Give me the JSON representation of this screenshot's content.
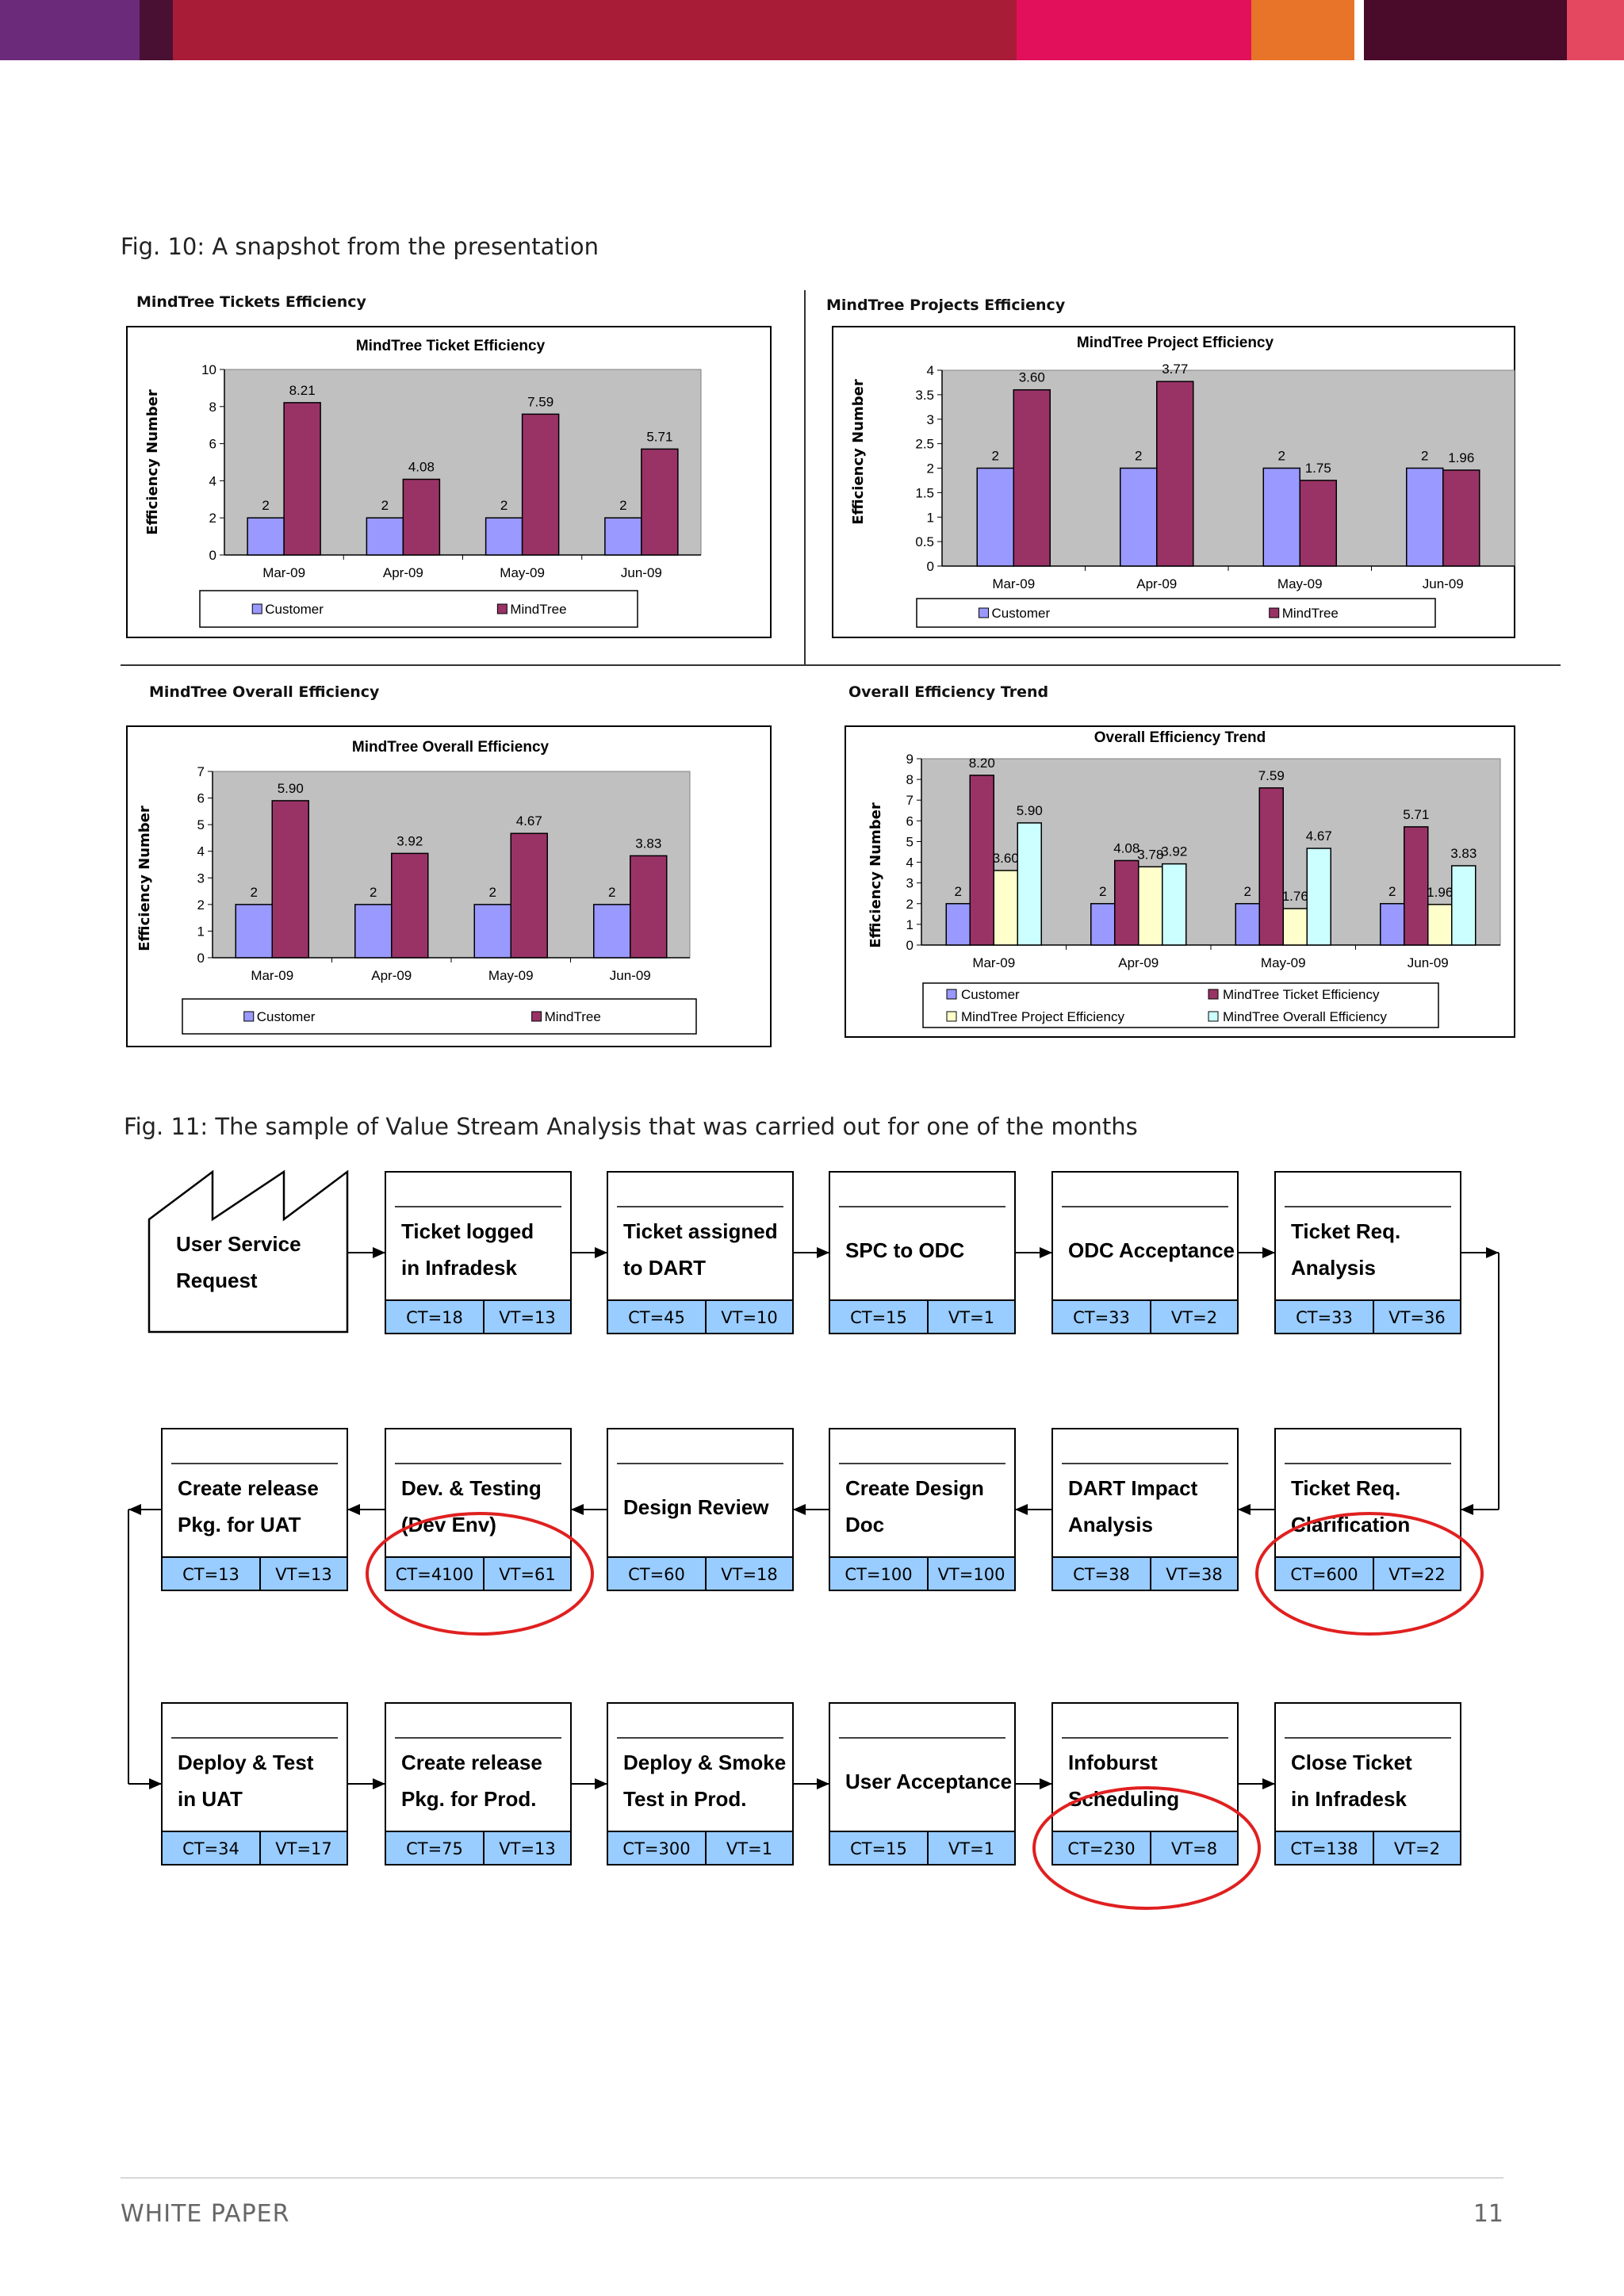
{
  "header": {
    "colors": [
      "#6b2a7a",
      "#4a1033",
      "#a81c38",
      "#e2105a",
      "#e8742a",
      "#4a0a2a",
      "#e34860"
    ]
  },
  "fig10": {
    "caption": "Fig. 10: A snapshot from the presentation"
  },
  "fig11": {
    "caption": "Fig. 11: The sample of Value Stream Analysis that was carried out for one of the months"
  },
  "panels": {
    "tickets": "MindTree Tickets Efficiency",
    "projects": "MindTree Projects Efficiency",
    "overall": "MindTree Overall Efficiency",
    "trend": "Overall Efficiency Trend"
  },
  "chart_data": [
    {
      "type": "bar",
      "title": "MindTree Ticket Efficiency",
      "ylabel": "Efficiency Number",
      "xlabel": "",
      "categories": [
        "Mar-09",
        "Apr-09",
        "May-09",
        "Jun-09"
      ],
      "ylim": [
        0,
        10
      ],
      "yticks": [
        "0",
        "2",
        "4",
        "6",
        "8",
        "10"
      ],
      "series": [
        {
          "name": "Customer",
          "values": [
            2,
            2,
            2,
            2
          ],
          "labels": [
            "2",
            "2",
            "2",
            "2"
          ],
          "color": "#9999ff"
        },
        {
          "name": "MindTree",
          "values": [
            8.21,
            4.08,
            7.59,
            5.71
          ],
          "labels": [
            "8.21",
            "4.08",
            "7.59",
            "5.71"
          ],
          "color": "#993366"
        }
      ],
      "legend": "bottom"
    },
    {
      "type": "bar",
      "title": "MindTree Project Efficiency",
      "ylabel": "Efficiency Number",
      "xlabel": "",
      "categories": [
        "Mar-09",
        "Apr-09",
        "May-09",
        "Jun-09"
      ],
      "ylim": [
        0,
        4
      ],
      "yticks": [
        "0",
        "0.5",
        "1",
        "1.5",
        "2",
        "2.5",
        "3",
        "3.5",
        "4"
      ],
      "series": [
        {
          "name": "Customer",
          "values": [
            2,
            2,
            2,
            2
          ],
          "labels": [
            "2",
            "2",
            "2",
            "2"
          ],
          "color": "#9999ff"
        },
        {
          "name": "MindTree",
          "values": [
            3.6,
            3.77,
            1.75,
            1.96
          ],
          "labels": [
            "3.60",
            "3.77",
            "1.75",
            "1.96"
          ],
          "color": "#993366"
        }
      ],
      "legend": "bottom"
    },
    {
      "type": "bar",
      "title": "MindTree Overall Efficiency",
      "ylabel": "Efficiency Number",
      "xlabel": "",
      "categories": [
        "Mar-09",
        "Apr-09",
        "May-09",
        "Jun-09"
      ],
      "ylim": [
        0,
        7
      ],
      "yticks": [
        "0",
        "1",
        "2",
        "3",
        "4",
        "5",
        "6",
        "7"
      ],
      "series": [
        {
          "name": "Customer",
          "values": [
            2,
            2,
            2,
            2
          ],
          "labels": [
            "2",
            "2",
            "2",
            "2"
          ],
          "color": "#9999ff"
        },
        {
          "name": "MindTree",
          "values": [
            5.9,
            3.92,
            4.67,
            3.83
          ],
          "labels": [
            "5.90",
            "3.92",
            "4.67",
            "3.83"
          ],
          "color": "#993366"
        }
      ],
      "legend": "bottom"
    },
    {
      "type": "bar",
      "title": "Overall Efficiency Trend",
      "ylabel": "Efficiency Number",
      "xlabel": "",
      "categories": [
        "Mar-09",
        "Apr-09",
        "May-09",
        "Jun-09"
      ],
      "ylim": [
        0,
        9
      ],
      "yticks": [
        "0",
        "1",
        "2",
        "3",
        "4",
        "5",
        "6",
        "7",
        "8",
        "9"
      ],
      "series": [
        {
          "name": "Customer",
          "values": [
            2,
            2,
            2,
            2
          ],
          "labels": [
            "2",
            "2",
            "2",
            "2"
          ],
          "color": "#9999ff"
        },
        {
          "name": "MindTree Ticket Efficiency",
          "values": [
            8.2,
            4.08,
            7.59,
            5.71
          ],
          "labels": [
            "8.20",
            "4.08",
            "7.59",
            "5.71"
          ],
          "color": "#993366"
        },
        {
          "name": "MindTree Project Efficiency",
          "values": [
            3.6,
            3.78,
            1.76,
            1.96
          ],
          "labels": [
            "3.60",
            "3.78",
            "1.76",
            "1.96"
          ],
          "color": "#ffffcc"
        },
        {
          "name": "MindTree Overall Efficiency",
          "values": [
            5.9,
            3.92,
            4.67,
            3.83
          ],
          "labels": [
            "5.90",
            "3.92",
            "4.67",
            "3.83"
          ],
          "color": "#ccffff"
        }
      ],
      "legend": "bottom"
    }
  ],
  "vsa": {
    "start": {
      "line1": "User Service",
      "line2": "Request"
    },
    "steps": [
      {
        "line1": "Ticket logged",
        "line2": "in Infradesk",
        "ct": "CT=18",
        "vt": "VT=13"
      },
      {
        "line1": "Ticket assigned",
        "line2": "to DART",
        "ct": "CT=45",
        "vt": "VT=10"
      },
      {
        "line1": "SPC to ODC",
        "line2": "",
        "ct": "CT=15",
        "vt": "VT=1"
      },
      {
        "line1": "ODC Acceptance",
        "line2": "",
        "ct": "CT=33",
        "vt": "VT=2"
      },
      {
        "line1": "Ticket Req.",
        "line2": "Analysis",
        "ct": "CT=33",
        "vt": "VT=36"
      },
      {
        "line1": "Ticket Req.",
        "line2": "Clarification",
        "ct": "CT=600",
        "vt": "VT=22"
      },
      {
        "line1": "DART Impact",
        "line2": "Analysis",
        "ct": "CT=38",
        "vt": "VT=38"
      },
      {
        "line1": "Create Design",
        "line2": "Doc",
        "ct": "CT=100",
        "vt": "VT=100"
      },
      {
        "line1": "Design Review",
        "line2": "",
        "ct": "CT=60",
        "vt": "VT=18"
      },
      {
        "line1": "Dev. & Testing",
        "line2": "(Dev Env)",
        "ct": "CT=4100",
        "vt": "VT=61"
      },
      {
        "line1": "Create release",
        "line2": "Pkg. for UAT",
        "ct": "CT=13",
        "vt": "VT=13"
      },
      {
        "line1": "Deploy & Test",
        "line2": "in UAT",
        "ct": "CT=34",
        "vt": "VT=17"
      },
      {
        "line1": "Create release",
        "line2": "Pkg. for Prod.",
        "ct": "CT=75",
        "vt": "VT=13"
      },
      {
        "line1": "Deploy & Smoke",
        "line2": "Test in Prod.",
        "ct": "CT=300",
        "vt": "VT=1"
      },
      {
        "line1": "User Acceptance",
        "line2": "",
        "ct": "CT=15",
        "vt": "VT=1"
      },
      {
        "line1": "Infoburst",
        "line2": "Scheduling",
        "ct": "CT=230",
        "vt": "VT=8"
      },
      {
        "line1": "Close Ticket",
        "line2": "in Infradesk",
        "ct": "CT=138",
        "vt": "VT=2"
      }
    ],
    "highlighted": [
      5,
      9,
      15
    ],
    "highlight_color": "#e02020",
    "metric_fill": "#99ccff"
  },
  "footer": {
    "left": "WHITE PAPER",
    "right": "11"
  }
}
